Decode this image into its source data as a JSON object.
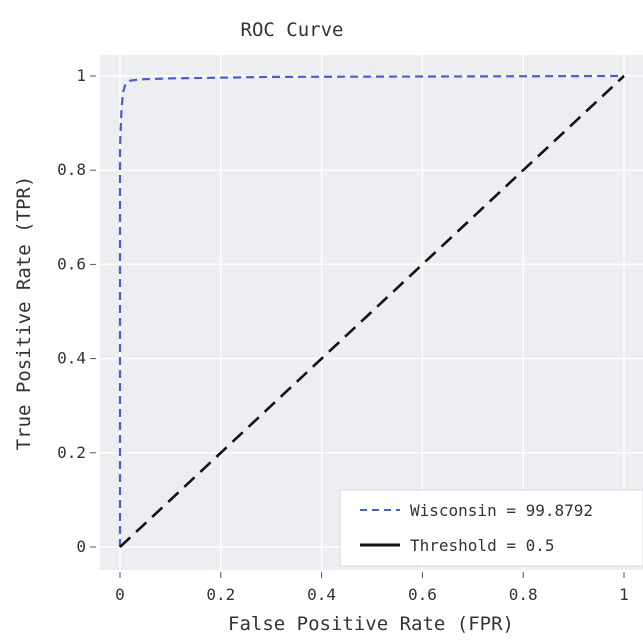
{
  "chart_data": {
    "type": "line",
    "title": "ROC Curve",
    "xlabel": "False Positive Rate (FPR)",
    "ylabel": "True Positive Rate (TPR)",
    "xlim": [
      0,
      1
    ],
    "ylim": [
      0,
      1
    ],
    "x_ticks": [
      {
        "value": 0,
        "label": "0"
      },
      {
        "value": 0.2,
        "label": "0.2"
      },
      {
        "value": 0.4,
        "label": "0.4"
      },
      {
        "value": 0.6,
        "label": "0.6"
      },
      {
        "value": 0.8,
        "label": "0.8"
      },
      {
        "value": 1,
        "label": "1"
      }
    ],
    "y_ticks": [
      {
        "value": 0,
        "label": "0"
      },
      {
        "value": 0.2,
        "label": "0.2"
      },
      {
        "value": 0.4,
        "label": "0.4"
      },
      {
        "value": 0.6,
        "label": "0.6"
      },
      {
        "value": 0.8,
        "label": "0.8"
      },
      {
        "value": 1,
        "label": "1"
      }
    ],
    "grid": true,
    "legend_position": "bottom-right",
    "background": "#eceef1",
    "series": [
      {
        "name": "Wisconsin = 99.8792",
        "color": "#4a5fcb",
        "dash": "dashed",
        "x": [
          0,
          0,
          0.003,
          0.006,
          0.01,
          0.02,
          0.04,
          0.1,
          0.3,
          1
        ],
        "y": [
          0,
          0.85,
          0.93,
          0.965,
          0.98,
          0.99,
          0.993,
          0.995,
          0.998,
          1
        ]
      },
      {
        "name": "Threshold = 0.5",
        "color": "#111111",
        "dash": "dashed",
        "x": [
          0,
          1
        ],
        "y": [
          0,
          1
        ]
      }
    ]
  }
}
